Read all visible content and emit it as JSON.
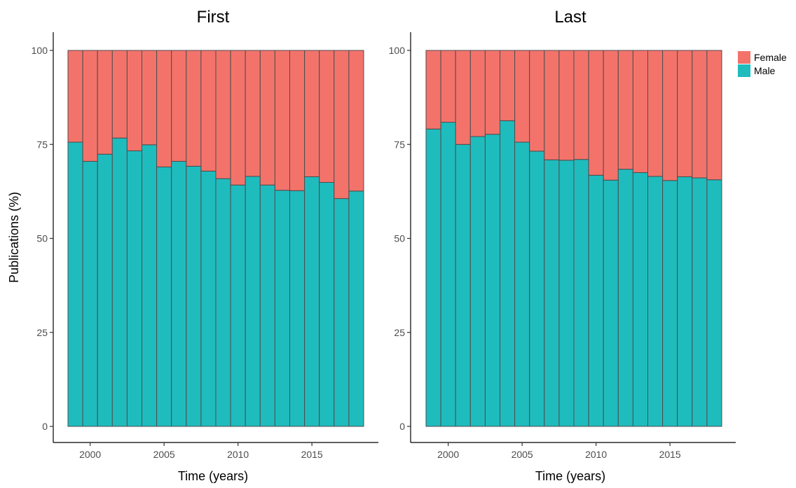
{
  "chart_data": [
    {
      "type": "bar",
      "stacked": true,
      "title": "First",
      "xlabel": "Time (years)",
      "ylabel": "Publications (%)",
      "x": [
        1999,
        2000,
        2001,
        2002,
        2003,
        2004,
        2005,
        2006,
        2007,
        2008,
        2009,
        2010,
        2011,
        2012,
        2013,
        2014,
        2015,
        2016,
        2017,
        2018
      ],
      "x_ticks": [
        "2000",
        "2005",
        "2010",
        "2015"
      ],
      "y_ticks": [
        "0",
        "25",
        "50",
        "75",
        "100"
      ],
      "ylim": [
        0,
        100
      ],
      "series": [
        {
          "name": "Male",
          "color": "#1fbcbe",
          "values": [
            75.6,
            70.5,
            72.4,
            76.7,
            73.3,
            74.9,
            69.0,
            70.5,
            69.2,
            67.9,
            65.9,
            64.2,
            66.5,
            64.2,
            62.8,
            62.7,
            66.4,
            64.9,
            60.6,
            62.6
          ]
        },
        {
          "name": "Female",
          "color": "#f3736b",
          "values": [
            24.4,
            29.5,
            27.6,
            23.3,
            26.7,
            25.1,
            31.0,
            29.5,
            30.8,
            32.1,
            34.1,
            35.8,
            33.5,
            35.8,
            37.2,
            37.3,
            33.6,
            35.1,
            39.4,
            37.4
          ]
        }
      ]
    },
    {
      "type": "bar",
      "stacked": true,
      "title": "Last",
      "xlabel": "Time (years)",
      "ylabel": "",
      "x": [
        1999,
        2000,
        2001,
        2002,
        2003,
        2004,
        2005,
        2006,
        2007,
        2008,
        2009,
        2010,
        2011,
        2012,
        2013,
        2014,
        2015,
        2016,
        2017,
        2018
      ],
      "x_ticks": [
        "2000",
        "2005",
        "2010",
        "2015"
      ],
      "y_ticks": [
        "0",
        "25",
        "50",
        "75",
        "100"
      ],
      "ylim": [
        0,
        100
      ],
      "series": [
        {
          "name": "Male",
          "color": "#1fbcbe",
          "values": [
            79.1,
            80.9,
            75.0,
            77.1,
            77.7,
            81.3,
            75.6,
            73.2,
            70.9,
            70.8,
            71.0,
            66.8,
            65.5,
            68.4,
            67.5,
            66.5,
            65.4,
            66.4,
            66.1,
            65.6
          ]
        },
        {
          "name": "Female",
          "color": "#f3736b",
          "values": [
            20.9,
            19.1,
            25.0,
            22.9,
            22.3,
            18.7,
            24.4,
            26.8,
            29.1,
            29.2,
            29.0,
            33.2,
            34.5,
            31.6,
            32.5,
            33.5,
            34.6,
            33.6,
            33.9,
            34.4
          ]
        }
      ]
    }
  ],
  "legend": {
    "placement": "top-right",
    "items": [
      {
        "name": "Female",
        "color": "#f3736b"
      },
      {
        "name": "Male",
        "color": "#1fbcbe"
      }
    ]
  }
}
